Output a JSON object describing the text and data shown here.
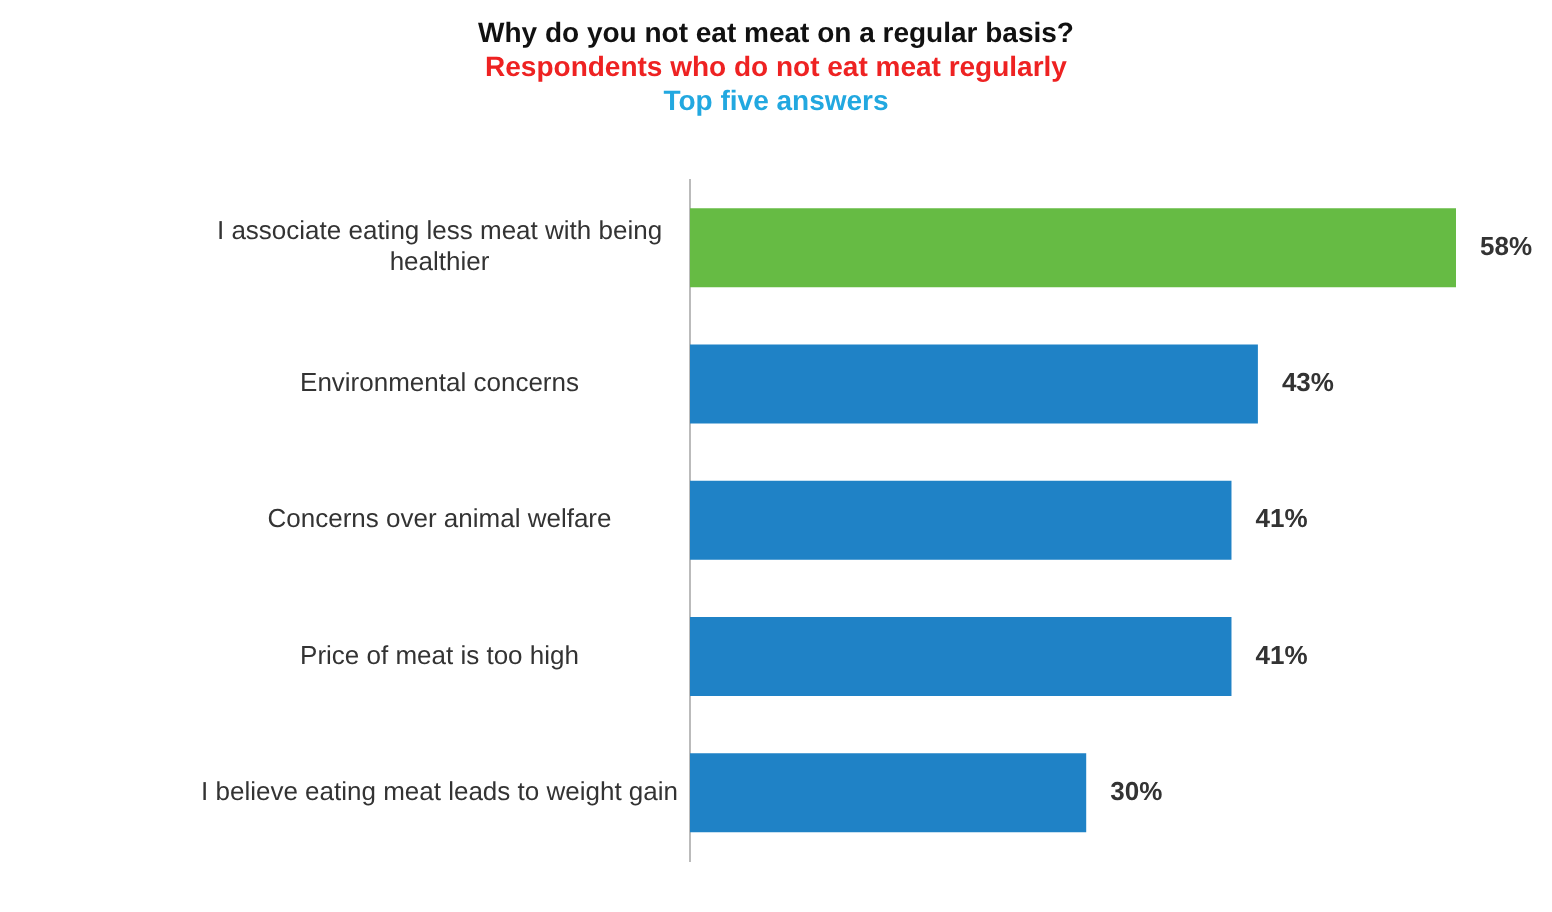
{
  "chart_data": {
    "type": "bar",
    "orientation": "horizontal",
    "title": "Why do you not eat meat on a regular basis?",
    "subtitle": "Respondents who do not eat meat regularly",
    "annotations": [
      "Top five answers"
    ],
    "categories": [
      "I associate eating less meat with being healthier",
      "Environmental concerns",
      "Concerns over animal welfare",
      "Price of meat is too high",
      "I believe eating meat leads to weight gain"
    ],
    "values": [
      58,
      43,
      41,
      41,
      30
    ],
    "value_labels": [
      "58%",
      "43%",
      "41%",
      "41%",
      "30%"
    ],
    "colors": [
      "#66bb44",
      "#1f82c6",
      "#1f82c6",
      "#1f82c6",
      "#1f82c6"
    ]
  }
}
